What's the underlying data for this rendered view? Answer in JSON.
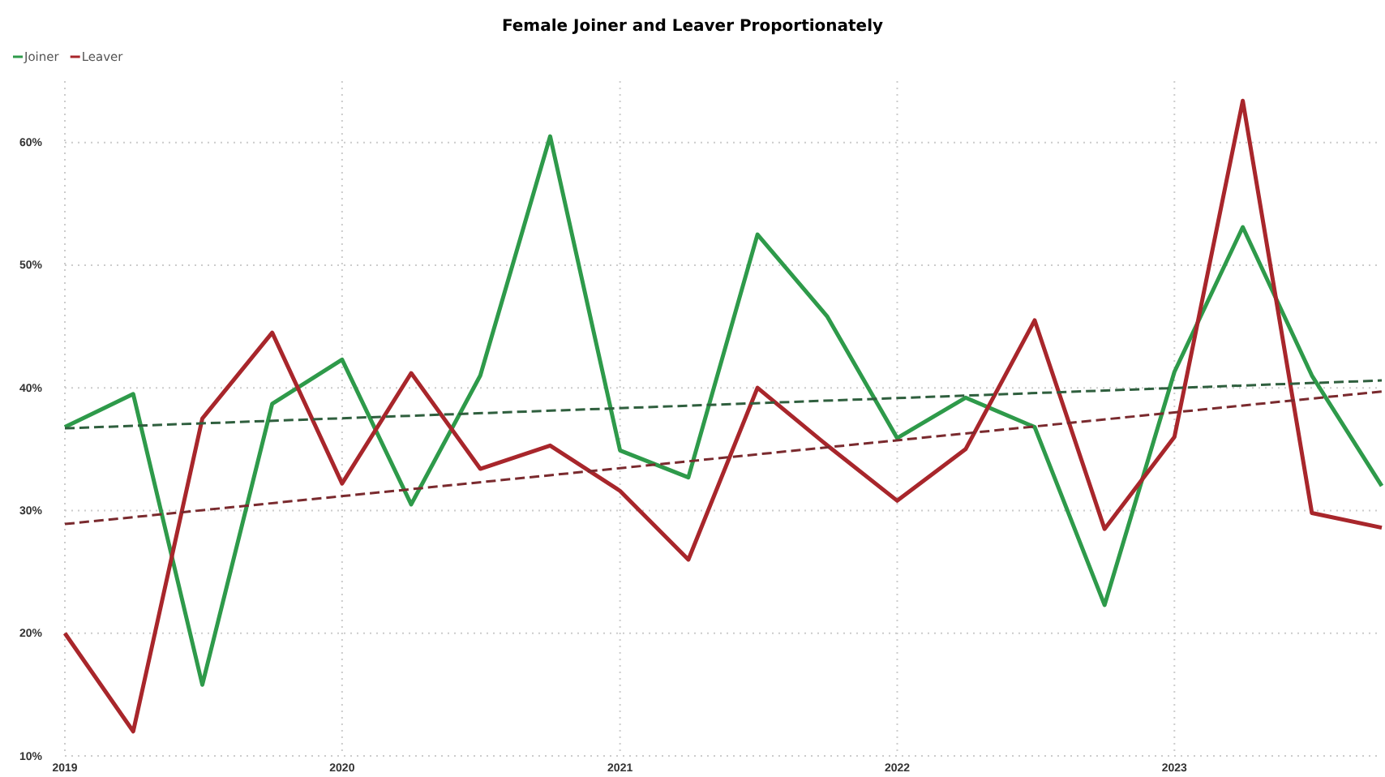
{
  "chart_data": {
    "type": "line",
    "title": "Female Joiner and Leaver Proportionately",
    "x": [
      "2019-01",
      "2019-04",
      "2019-07",
      "2019-10",
      "2020-01",
      "2020-04",
      "2020-07",
      "2020-10",
      "2021-01",
      "2021-04",
      "2021-07",
      "2021-10",
      "2022-01",
      "2022-04",
      "2022-07",
      "2022-10",
      "2023-01",
      "2023-04",
      "2023-07",
      "2023-10"
    ],
    "series": [
      {
        "name": "Joiner",
        "color": "#2e9a4a",
        "values": [
          36.8,
          39.5,
          15.8,
          38.7,
          42.3,
          30.5,
          41,
          60.5,
          34.9,
          32.7,
          52.5,
          45.8,
          35.9,
          39.2,
          36.8,
          22.3,
          41.3,
          53.1,
          41,
          32
        ]
      },
      {
        "name": "Leaver",
        "color": "#a8262b",
        "values": [
          20,
          12,
          37.5,
          44.5,
          32.2,
          41.2,
          33.4,
          35.3,
          31.6,
          26,
          40,
          35.3,
          30.8,
          35,
          45.5,
          28.5,
          36,
          63.4,
          29.8,
          28.6
        ]
      },
      {
        "type": "line",
        "color": "#2f5f3e",
        "line_style": "dashed",
        "x": [
          "2019-01",
          "2023-10"
        ],
        "values": [
          36.7,
          40.6
        ]
      },
      {
        "type": "line",
        "color": "#7a2a2e",
        "line_style": "dashed",
        "x": [
          "2019-01",
          "2023-10"
        ],
        "values": [
          28.9,
          39.7
        ]
      }
    ],
    "xlim": [
      "2019-01",
      "2023-10"
    ],
    "xticks": [
      "2019",
      "2020",
      "2021",
      "2022",
      "2023"
    ],
    "ylim": [
      10,
      65
    ],
    "yticks": [
      {
        "value": 10,
        "label": "10%"
      },
      {
        "value": 20,
        "label": "20%"
      },
      {
        "value": 30,
        "label": "30%"
      },
      {
        "value": 40,
        "label": "40%"
      },
      {
        "value": 50,
        "label": "50%"
      },
      {
        "value": 60,
        "label": "60%"
      }
    ],
    "grid": true,
    "legend": "top left",
    "line_style": "solid",
    "marker": "none"
  }
}
